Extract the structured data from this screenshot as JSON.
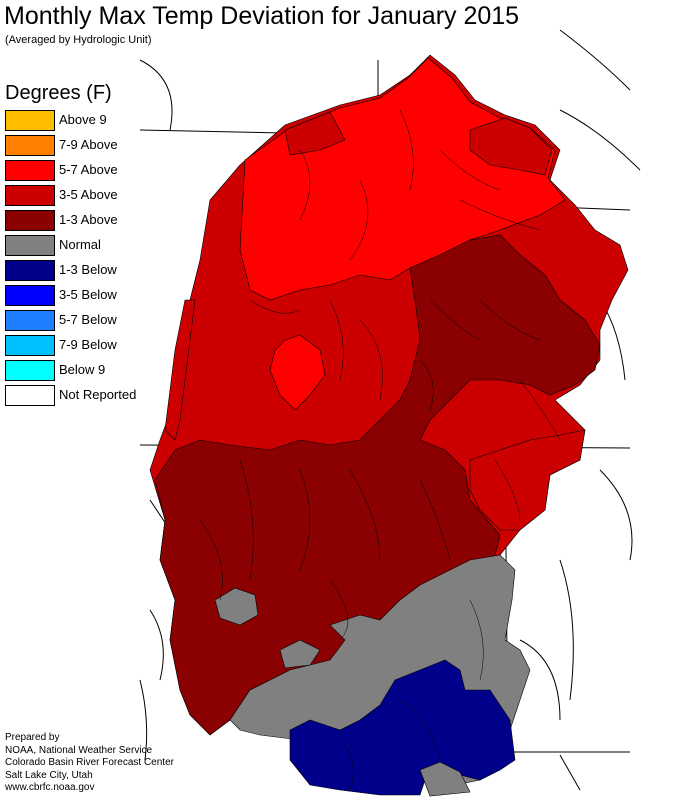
{
  "title": "Monthly Max Temp Deviation for January 2015",
  "subtitle": "(Averaged by Hydrologic Unit)",
  "legend": {
    "title": "Degrees (F)",
    "items": [
      {
        "label": "Above 9",
        "color": "#ffbf00"
      },
      {
        "label": "7-9 Above",
        "color": "#ff7f00"
      },
      {
        "label": "5-7 Above",
        "color": "#ff0000"
      },
      {
        "label": "3-5 Above",
        "color": "#cc0000"
      },
      {
        "label": "1-3 Above",
        "color": "#8b0000"
      },
      {
        "label": "Normal",
        "color": "#808080"
      },
      {
        "label": "1-3 Below",
        "color": "#00008b"
      },
      {
        "label": "3-5 Below",
        "color": "#0000ff"
      },
      {
        "label": "5-7 Below",
        "color": "#1e7fff"
      },
      {
        "label": "7-9 Below",
        "color": "#00bfff"
      },
      {
        "label": "Below 9",
        "color": "#00ffff"
      },
      {
        "label": "Not Reported",
        "color": "#ffffff"
      }
    ]
  },
  "credits": [
    "Prepared by",
    "NOAA, National Weather Service",
    "Colorado Basin River Forecast Center",
    "Salt Lake City, Utah",
    "www.cbrfc.noaa.gov"
  ]
}
